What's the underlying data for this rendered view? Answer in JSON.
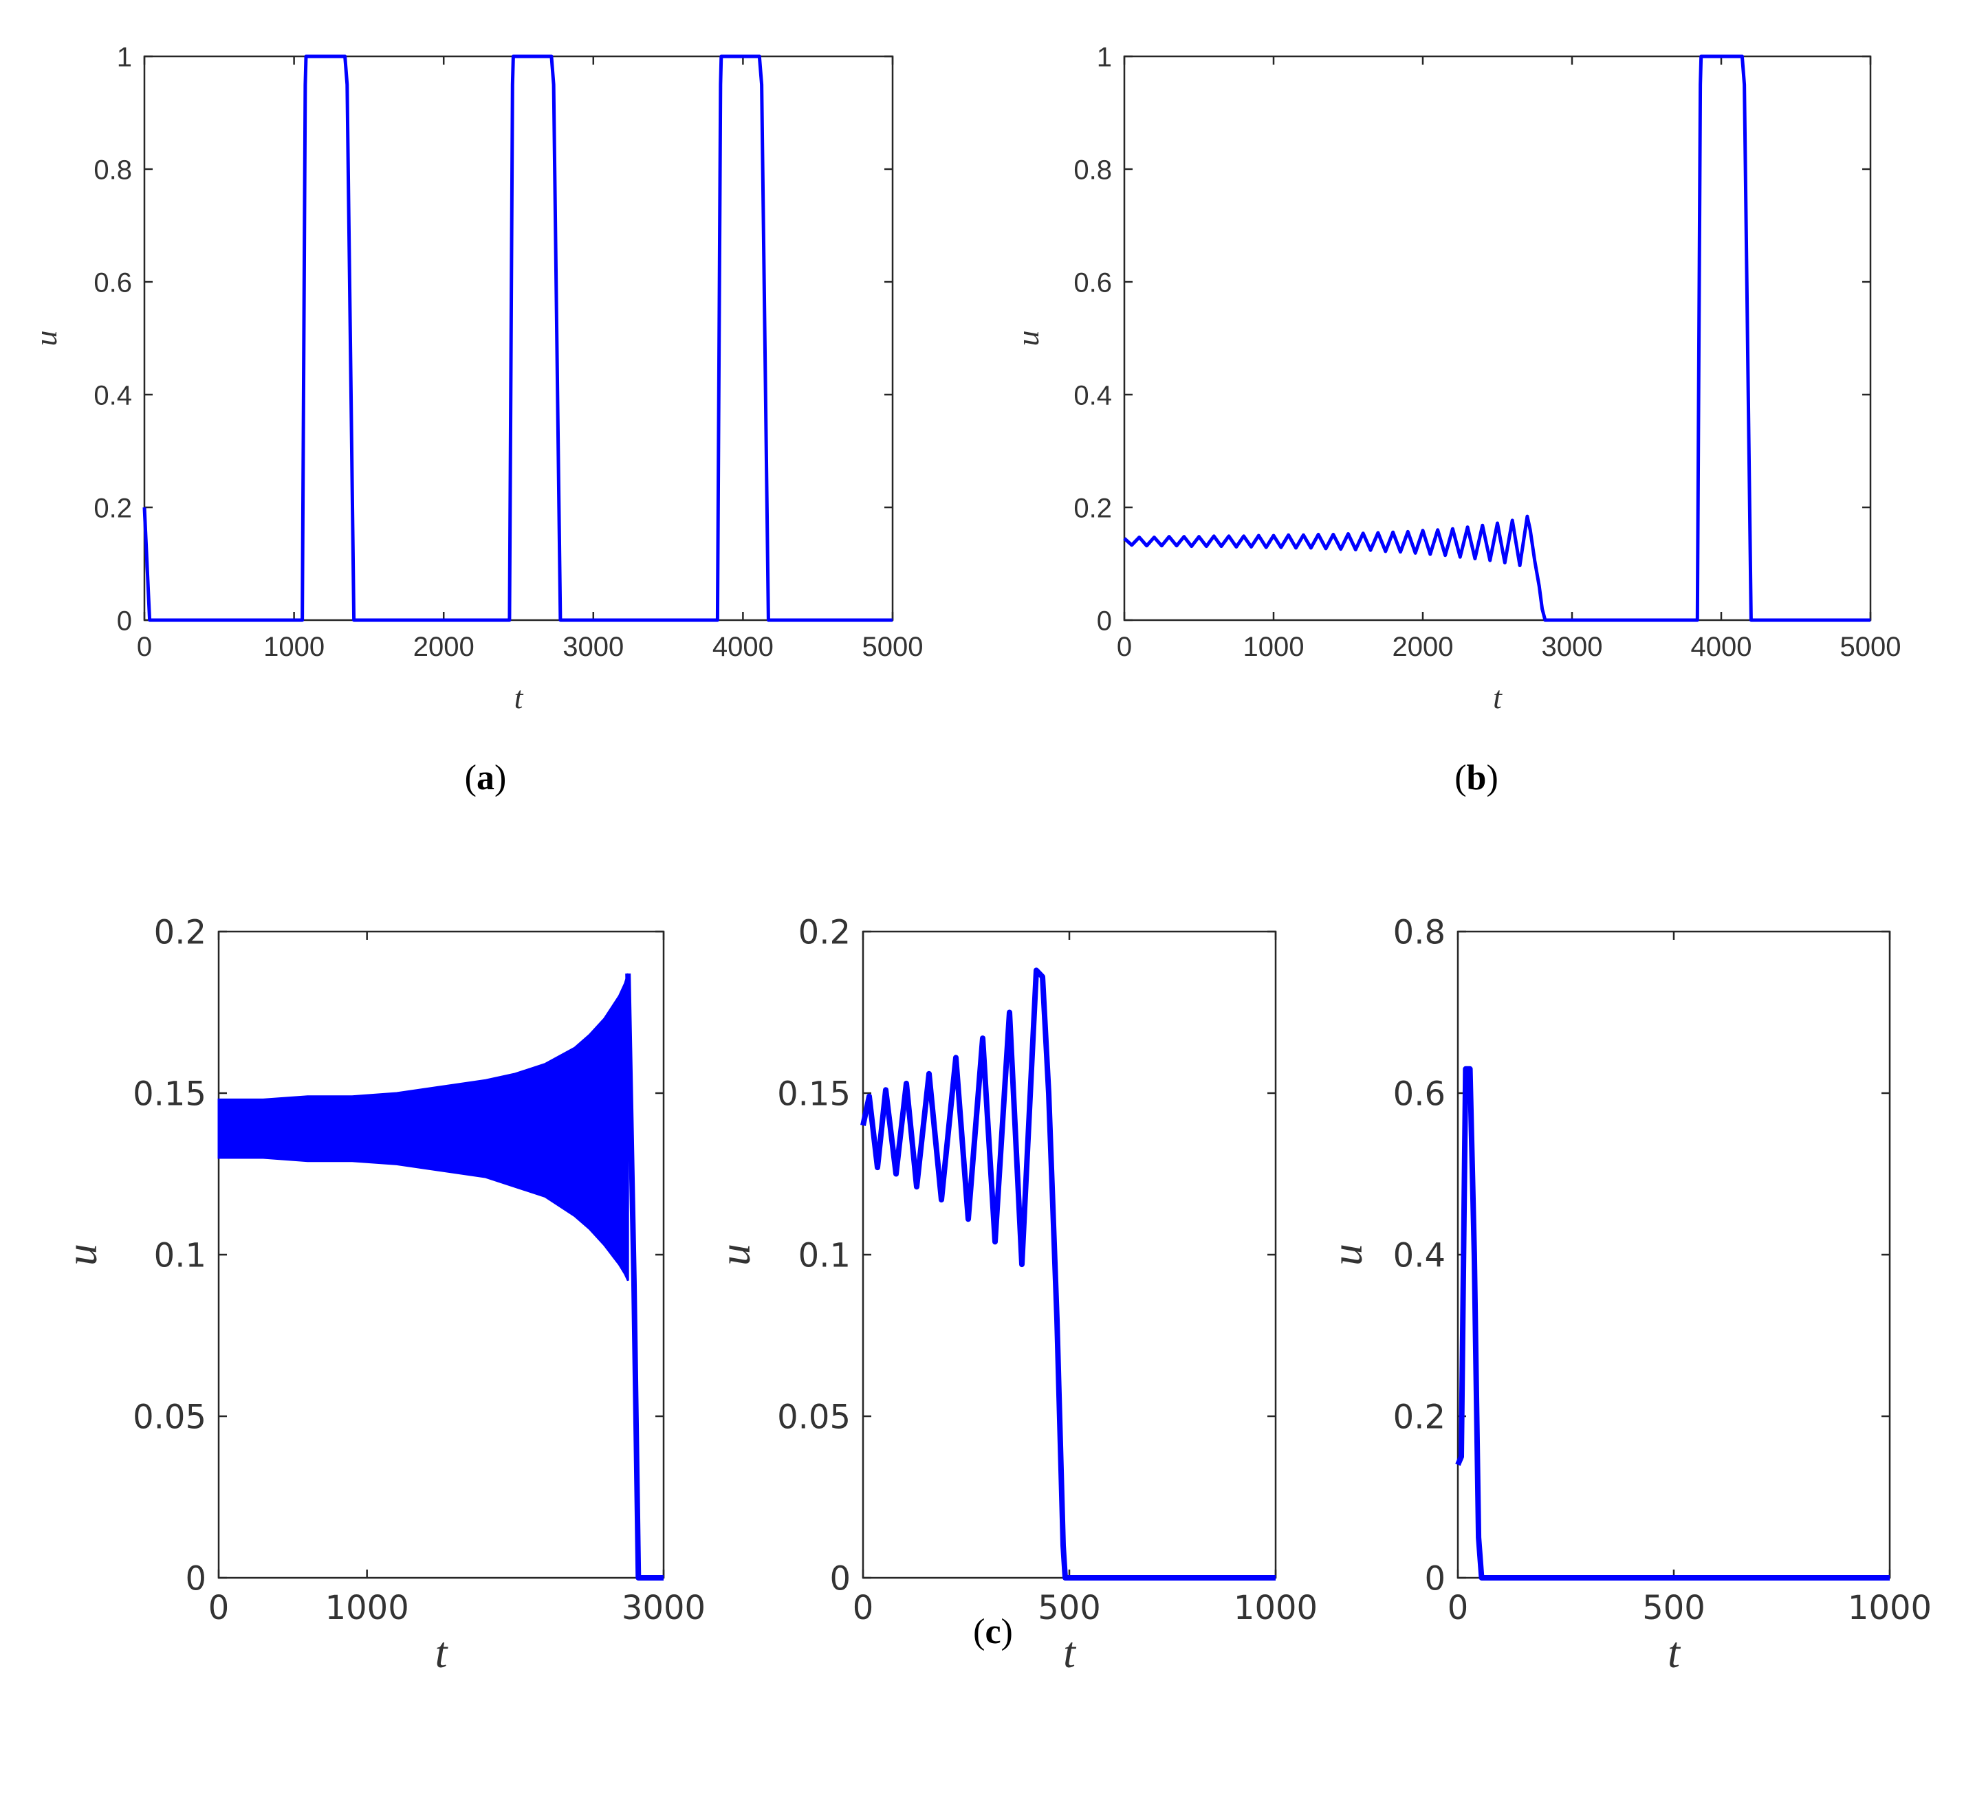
{
  "colors": {
    "line": "#0000ff",
    "axis": "#262626",
    "text": "#333333"
  },
  "captions": {
    "a": "a",
    "b": "b",
    "c": "c"
  },
  "chart_data": [
    {
      "id": "a",
      "type": "line",
      "xlabel": "t",
      "ylabel": "u",
      "xlim": [
        0,
        5000
      ],
      "ylim": [
        0,
        1
      ],
      "xticks": [
        "0",
        "1000",
        "2000",
        "3000",
        "4000",
        "5000"
      ],
      "yticks": [
        "0",
        "0.2",
        "0.4",
        "0.6",
        "0.8",
        "1"
      ],
      "grid": false,
      "series": [
        {
          "x": [
            0,
            35,
            1055,
            1075,
            1080,
            1340,
            1355,
            1400,
            2440,
            2460,
            2465,
            2720,
            2735,
            2780,
            3830,
            3850,
            3855,
            4110,
            4125,
            4170,
            5000
          ],
          "y": [
            0.2,
            0,
            0,
            0.95,
            1,
            1,
            0.95,
            0,
            0,
            0.95,
            1,
            1,
            0.95,
            0,
            0,
            0.95,
            1,
            1,
            0.95,
            0,
            0
          ]
        }
      ]
    },
    {
      "id": "b",
      "type": "line",
      "xlabel": "t",
      "ylabel": "u",
      "xlim": [
        0,
        5000
      ],
      "ylim": [
        0,
        1
      ],
      "xticks": [
        "0",
        "1000",
        "2000",
        "3000",
        "4000",
        "5000"
      ],
      "yticks": [
        "0",
        "0.2",
        "0.4",
        "0.6",
        "0.8",
        "1"
      ],
      "grid": false,
      "series": [
        {
          "x": [
            0,
            50,
            100,
            150,
            200,
            250,
            300,
            350,
            400,
            450,
            500,
            550,
            600,
            650,
            700,
            750,
            800,
            850,
            900,
            950,
            1000,
            1050,
            1100,
            1150,
            1200,
            1250,
            1300,
            1350,
            1400,
            1450,
            1500,
            1550,
            1600,
            1650,
            1700,
            1750,
            1800,
            1850,
            1900,
            1950,
            2000,
            2050,
            2100,
            2150,
            2200,
            2250,
            2300,
            2350,
            2400,
            2450,
            2500,
            2550,
            2600,
            2650,
            2700,
            2720,
            2750,
            2780,
            2800,
            2820,
            3840,
            3860,
            3865,
            4140,
            4155,
            4200,
            5000
          ],
          "y": [
            0.145,
            0.133,
            0.147,
            0.132,
            0.147,
            0.132,
            0.148,
            0.132,
            0.148,
            0.131,
            0.148,
            0.131,
            0.149,
            0.131,
            0.149,
            0.13,
            0.149,
            0.13,
            0.15,
            0.129,
            0.15,
            0.129,
            0.151,
            0.128,
            0.151,
            0.128,
            0.152,
            0.127,
            0.152,
            0.126,
            0.153,
            0.125,
            0.154,
            0.124,
            0.155,
            0.122,
            0.156,
            0.121,
            0.157,
            0.119,
            0.159,
            0.117,
            0.16,
            0.115,
            0.162,
            0.112,
            0.165,
            0.109,
            0.168,
            0.106,
            0.172,
            0.102,
            0.177,
            0.097,
            0.184,
            0.16,
            0.105,
            0.06,
            0.02,
            0,
            0,
            0.95,
            1,
            1,
            0.95,
            0,
            0
          ]
        }
      ]
    },
    {
      "id": "c1",
      "type": "line",
      "xlabel": "t",
      "ylabel": "u",
      "xlim": [
        0,
        3000
      ],
      "ylim": [
        0,
        0.2
      ],
      "xticks": [
        "0",
        "1000",
        "3000"
      ],
      "xtick_values": [
        0,
        1000,
        3000
      ],
      "yticks": [
        "0",
        "0.05",
        "0.1",
        "0.15",
        "0.2"
      ],
      "grid": false,
      "series": [
        {
          "envelope_x": [
            0,
            300,
            600,
            900,
            1200,
            1500,
            1800,
            2000,
            2200,
            2400,
            2500,
            2600,
            2700,
            2740,
            2760
          ],
          "envelope_upper": [
            0.148,
            0.148,
            0.149,
            0.149,
            0.15,
            0.152,
            0.154,
            0.156,
            0.159,
            0.164,
            0.168,
            0.173,
            0.18,
            0.184,
            0.187
          ],
          "envelope_lower": [
            0.13,
            0.13,
            0.129,
            0.129,
            0.128,
            0.126,
            0.124,
            0.121,
            0.118,
            0.112,
            0.108,
            0.103,
            0.097,
            0.094,
            0.092
          ],
          "tail_x": [
            2760,
            2800,
            2830,
            3000
          ],
          "tail_y": [
            0.187,
            0.092,
            0,
            0
          ]
        }
      ]
    },
    {
      "id": "c2",
      "type": "line",
      "xlabel": "t",
      "ylabel": "u",
      "xlim": [
        0,
        1000
      ],
      "ylim": [
        0,
        0.2
      ],
      "xticks": [
        "0",
        "500",
        "1000"
      ],
      "yticks": [
        "0",
        "0.05",
        "0.1",
        "0.15",
        "0.2"
      ],
      "grid": false,
      "series": [
        {
          "x": [
            0,
            15,
            35,
            55,
            80,
            105,
            130,
            160,
            190,
            225,
            255,
            290,
            320,
            355,
            385,
            420,
            435,
            450,
            470,
            485,
            490,
            1000
          ],
          "y": [
            0.14,
            0.149,
            0.127,
            0.151,
            0.125,
            0.153,
            0.121,
            0.156,
            0.117,
            0.161,
            0.111,
            0.167,
            0.104,
            0.175,
            0.097,
            0.188,
            0.186,
            0.15,
            0.08,
            0.01,
            0,
            0
          ]
        }
      ]
    },
    {
      "id": "c3",
      "type": "line",
      "xlabel": "t",
      "ylabel": "u",
      "xlim": [
        0,
        1000
      ],
      "ylim": [
        0,
        0.8
      ],
      "xticks": [
        "0",
        "500",
        "1000"
      ],
      "yticks": [
        "0",
        "0.2",
        "0.4",
        "0.6",
        "0.8"
      ],
      "grid": false,
      "series": [
        {
          "x": [
            0,
            8,
            18,
            28,
            38,
            48,
            55,
            1000
          ],
          "y": [
            0.14,
            0.15,
            0.63,
            0.63,
            0.4,
            0.05,
            0,
            0
          ]
        }
      ]
    }
  ]
}
